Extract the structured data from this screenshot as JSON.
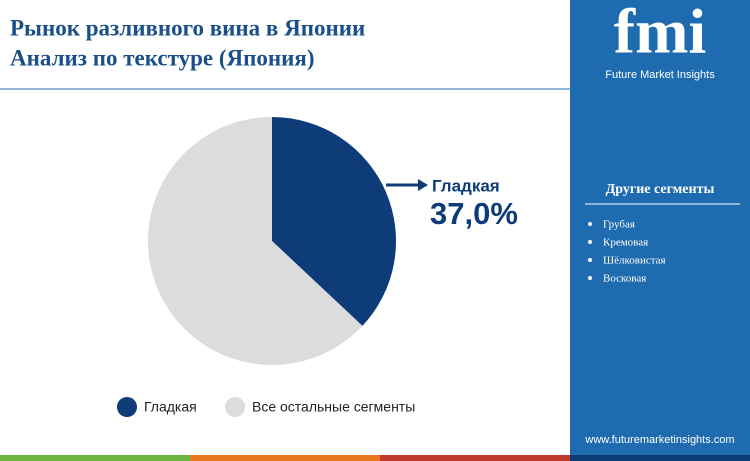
{
  "chart_data": {
    "type": "pie",
    "title": "Рынок разливного вина в Японии",
    "subtitle": "Анализ по текстуре (Япония)",
    "categories": [
      "Гладкая",
      "Все остальные сегменты"
    ],
    "values": [
      37.0,
      63.0
    ],
    "value_labels": [
      "37,0%",
      null
    ],
    "colors": [
      "#0d3c78",
      "#dcdcdc"
    ]
  },
  "sidebar": {
    "logo": "fmi",
    "brand": "Future Market Insights",
    "heading": "Другие сегменты",
    "items": [
      "Грубая",
      "Кремовая",
      "Шёлковистая",
      "Восковая"
    ],
    "website": "www.futuremarketinsights.com"
  }
}
